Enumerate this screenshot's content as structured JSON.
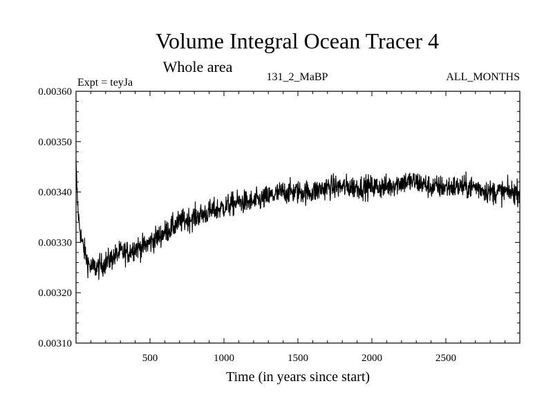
{
  "chart_data": {
    "type": "line",
    "title": "Volume Integral Ocean Tracer 4",
    "subtitle": "Whole area",
    "experiment_label": "Expt = teyJa",
    "run_label": "131_2_MaBP",
    "period_label": "ALL_MONTHS",
    "xlabel": "Time (in years since start)",
    "ylabel": "",
    "xlim": [
      0,
      3000
    ],
    "ylim": [
      0.0031,
      0.0036
    ],
    "x_ticks": [
      500,
      1000,
      1500,
      2000,
      2500
    ],
    "x_tick_labels": [
      "500",
      "1000",
      "1500",
      "2000",
      "2500"
    ],
    "y_ticks": [
      0.0031,
      0.0032,
      0.0033,
      0.0034,
      0.0035,
      0.0036
    ],
    "y_tick_labels": [
      "0.00310",
      "0.00320",
      "0.00330",
      "0.00340",
      "0.00350",
      "0.00360"
    ],
    "grid": false,
    "legend": "none",
    "series": [
      {
        "name": "Volume Integral Ocean Tracer 4",
        "color": "#000000",
        "x": [
          0,
          10,
          20,
          40,
          60,
          80,
          100,
          150,
          200,
          250,
          300,
          350,
          400,
          450,
          500,
          600,
          700,
          800,
          900,
          1000,
          1100,
          1200,
          1300,
          1400,
          1500,
          1600,
          1700,
          1800,
          1900,
          2000,
          2100,
          2200,
          2300,
          2400,
          2500,
          2600,
          2700,
          2800,
          2900,
          3000
        ],
        "y": [
          0.00345,
          0.00338,
          0.00334,
          0.0033,
          0.00328,
          0.00326,
          0.00325,
          0.00325,
          0.00326,
          0.00327,
          0.00328,
          0.00328,
          0.00329,
          0.00329,
          0.0033,
          0.00332,
          0.00334,
          0.00335,
          0.00336,
          0.00337,
          0.00338,
          0.00338,
          0.00339,
          0.0034,
          0.0034,
          0.0034,
          0.00341,
          0.00341,
          0.00341,
          0.00341,
          0.00341,
          0.00342,
          0.00342,
          0.00341,
          0.00341,
          0.00341,
          0.00341,
          0.0034,
          0.0034,
          0.0034
        ],
        "noise_amplitude": 4e-05
      }
    ]
  }
}
